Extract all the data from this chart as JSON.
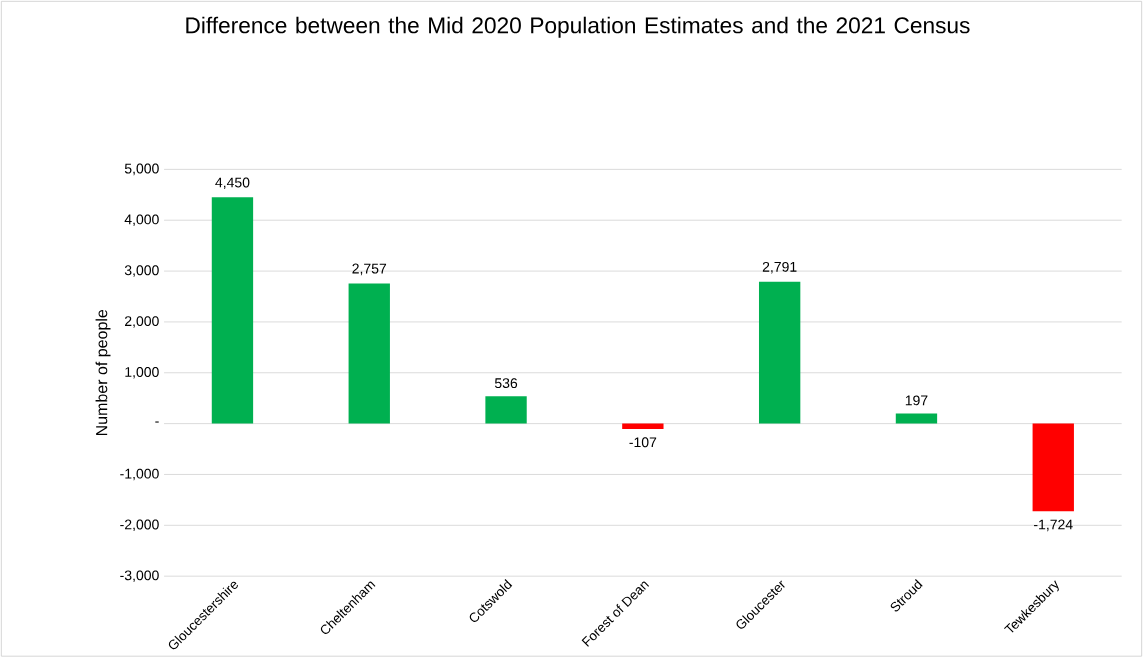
{
  "chart_data": {
    "type": "bar",
    "title": "Difference between the Mid 2020 Population Estimates and the 2021 Census",
    "ylabel": "Number of people",
    "categories": [
      "Gloucestershire",
      "Cheltenham",
      "Cotswold",
      "Forest of Dean",
      "Gloucester",
      "Stroud",
      "Tewkesbury"
    ],
    "values": [
      4450,
      2757,
      536,
      -107,
      2791,
      197,
      -1724
    ],
    "colors": [
      "#00b050",
      "#00b050",
      "#00b050",
      "#ff0000",
      "#00b050",
      "#00b050",
      "#ff0000"
    ],
    "value_labels": [
      "4,450",
      "2,757",
      "536",
      "-107",
      "2,791",
      "197",
      "-1,724"
    ],
    "ylim": [
      -3000,
      5000
    ],
    "yticks": [
      {
        "value": -3000,
        "label": "-3,000"
      },
      {
        "value": -2000,
        "label": "-2,000"
      },
      {
        "value": -1000,
        "label": "-1,000"
      },
      {
        "value": 0,
        "label": "-"
      },
      {
        "value": 1000,
        "label": "1,000"
      },
      {
        "value": 2000,
        "label": "2,000"
      },
      {
        "value": 3000,
        "label": "3,000"
      },
      {
        "value": 4000,
        "label": "4,000"
      },
      {
        "value": 5000,
        "label": "5,000"
      }
    ],
    "grid": "y"
  }
}
